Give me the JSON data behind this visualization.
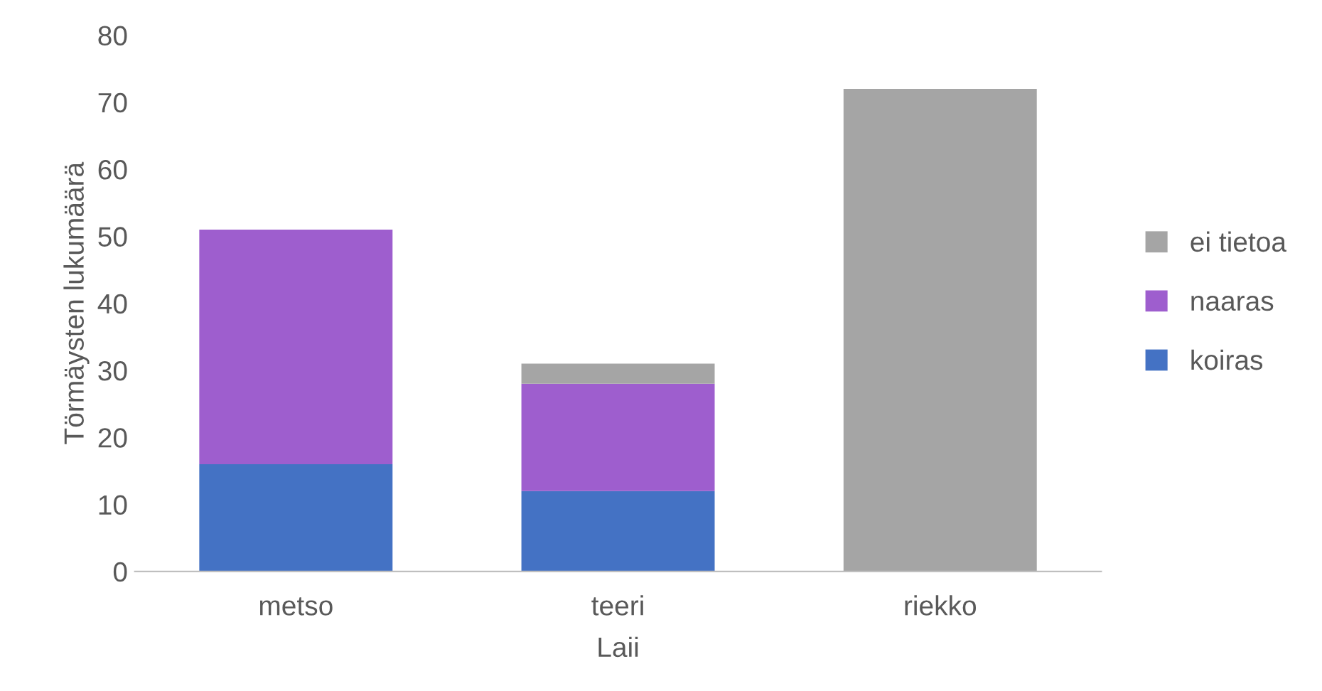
{
  "chart_data": {
    "type": "bar",
    "stacked": true,
    "xlabel": "Laii",
    "ylabel": "Törmäysten lukumäärä",
    "categories": [
      "metso",
      "teeri",
      "riekko"
    ],
    "series": [
      {
        "name": "koiras",
        "color": "#4472c4",
        "values": [
          16,
          12,
          0
        ]
      },
      {
        "name": "naaras",
        "color": "#9e5ece",
        "values": [
          35,
          16,
          0
        ]
      },
      {
        "name": "ei tietoa",
        "color": "#a5a5a5",
        "values": [
          0,
          3,
          72
        ]
      }
    ],
    "ylim": [
      0,
      80
    ],
    "yticks": [
      0,
      10,
      20,
      30,
      40,
      50,
      60,
      70,
      80
    ],
    "grid": false,
    "legend": "right"
  }
}
